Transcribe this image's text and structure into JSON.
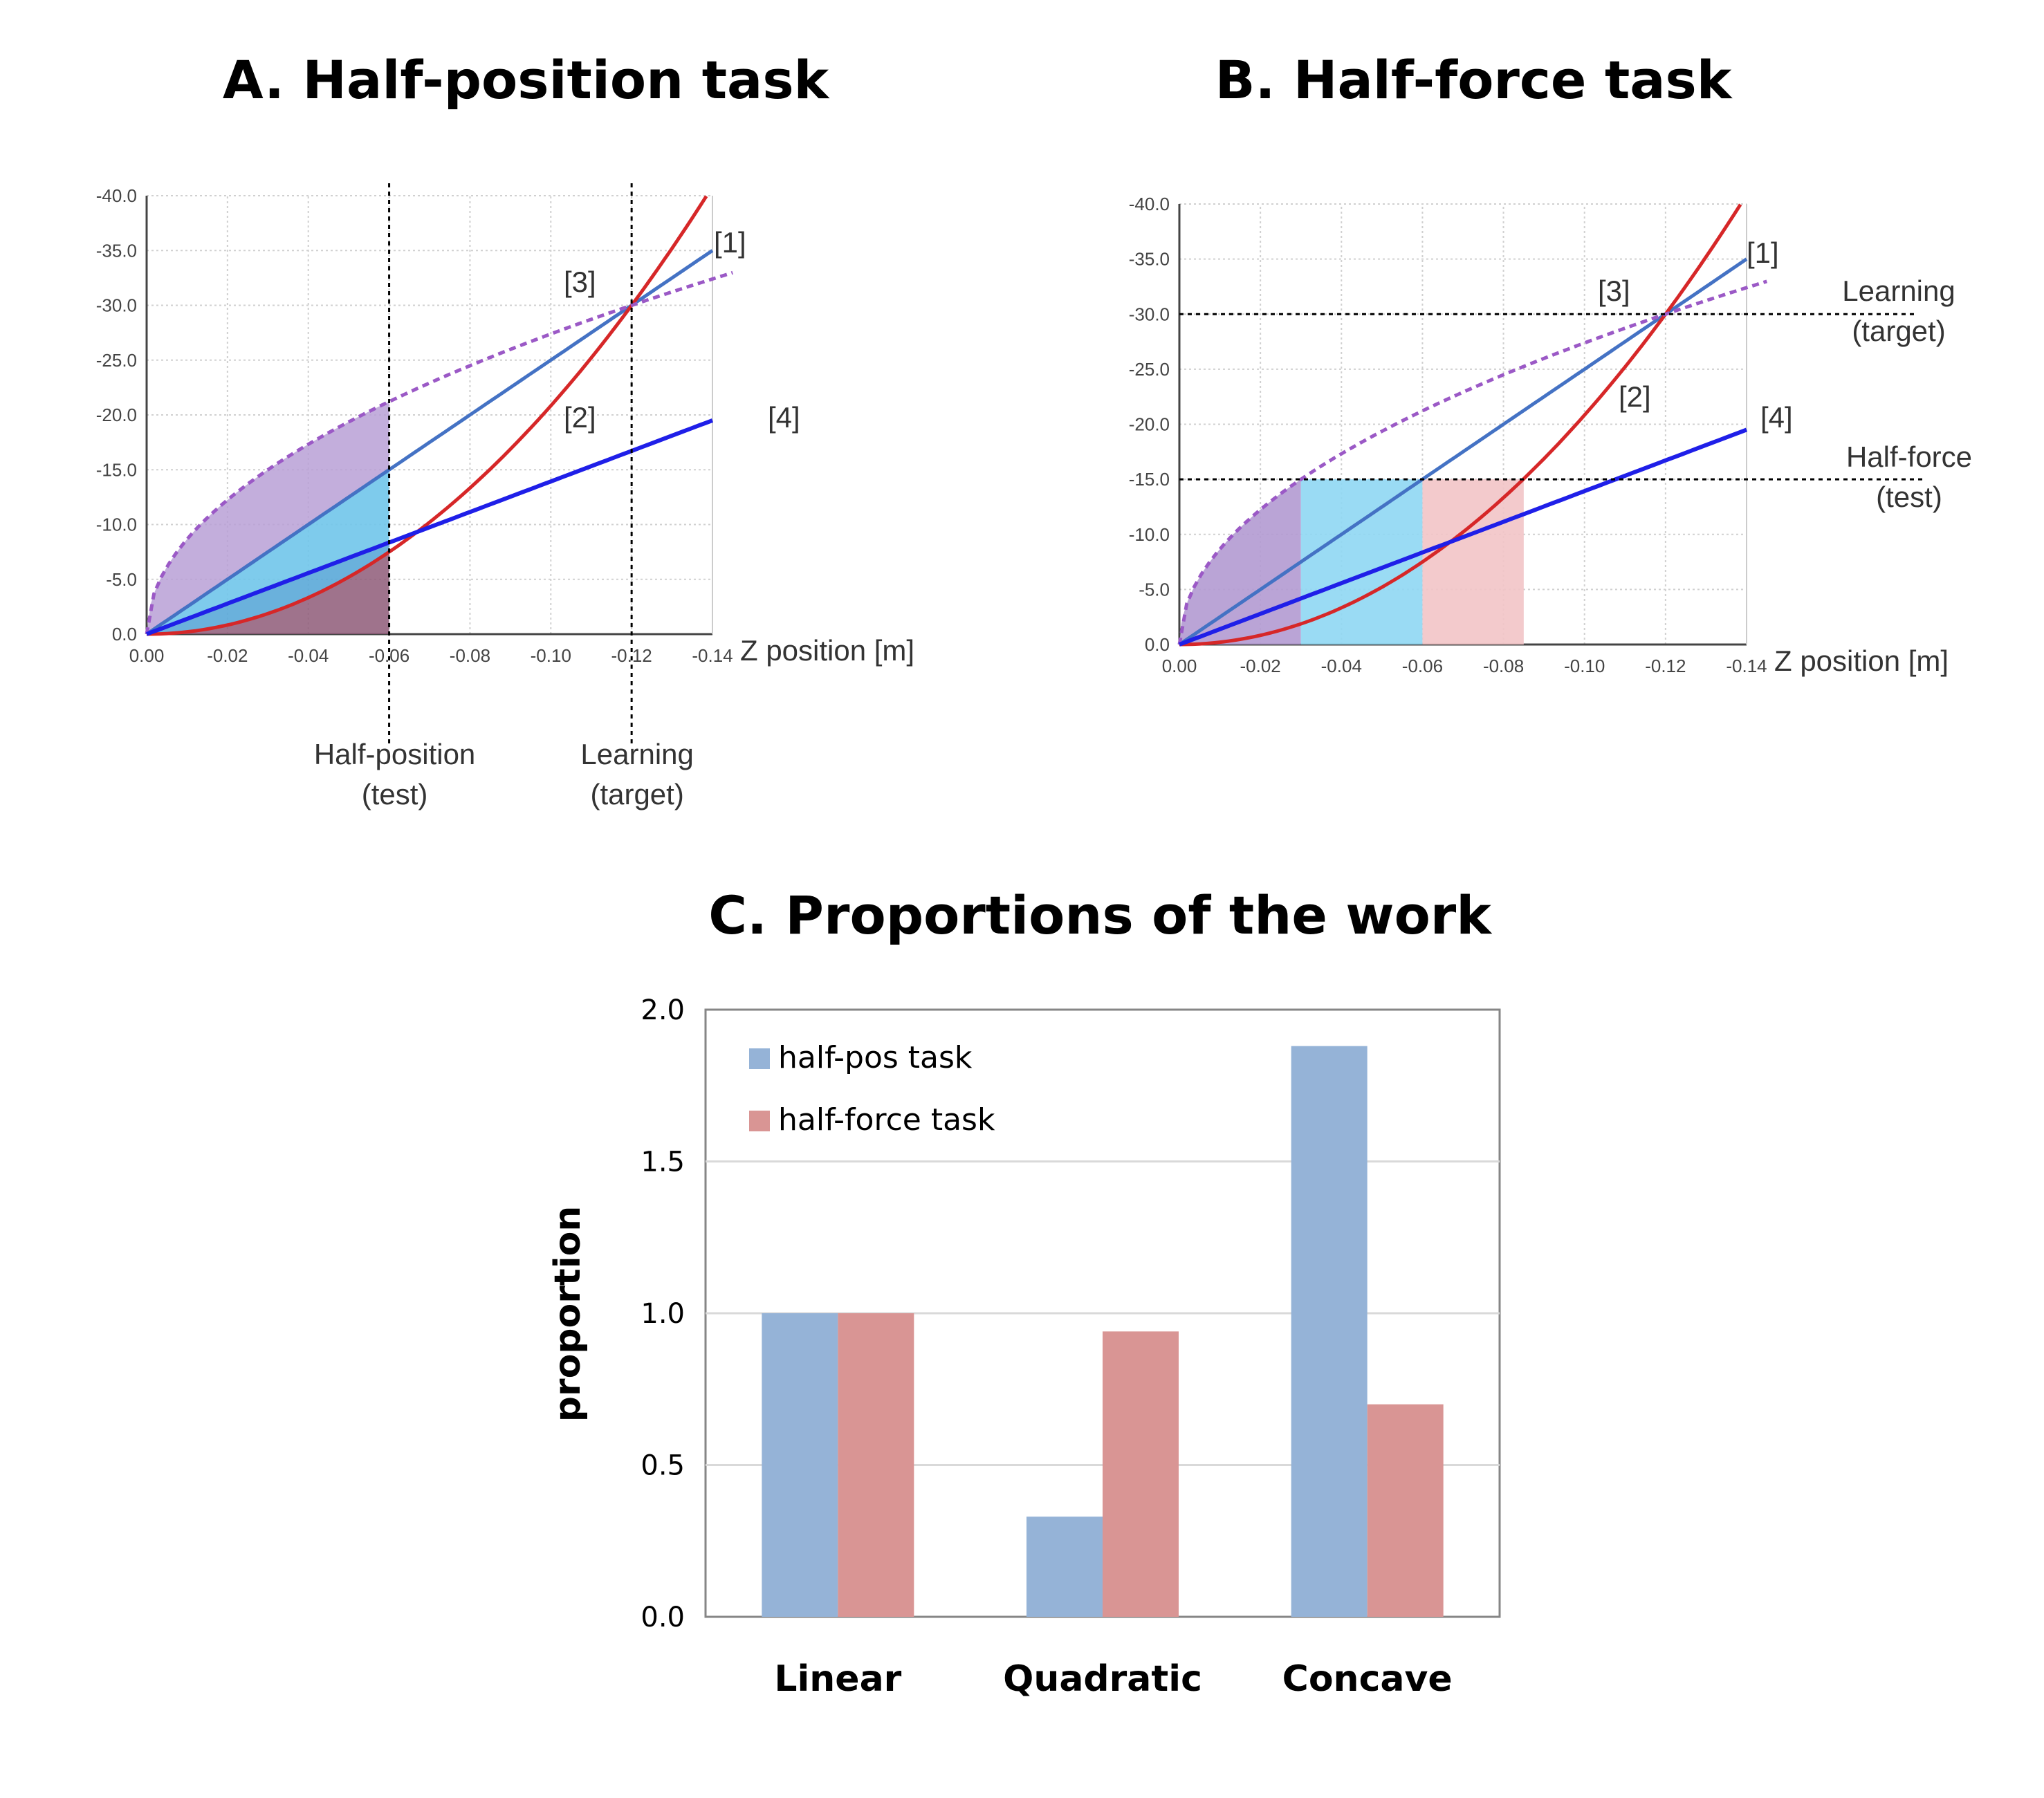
{
  "panel_a": {
    "title": "A.  Half-position task",
    "x_axis_label": "Z position [m]",
    "marker_test": [
      "Half-position",
      "(test)"
    ],
    "marker_target": [
      "Learning",
      "(target)"
    ]
  },
  "panel_b": {
    "title": "B.  Half-force task",
    "x_axis_label": "Z position [m]",
    "marker_target": [
      "Learning",
      "(target)"
    ],
    "marker_test": [
      "Half-force",
      "(test)"
    ]
  },
  "panel_c": {
    "title": "C.    Proportions of the work"
  },
  "chart_data": [
    {
      "type": "line",
      "title": "A.  Half-position task",
      "xlabel": "Z position [m]",
      "ylabel": "",
      "xlim": [
        0.0,
        -0.14
      ],
      "ylim": [
        0.0,
        -40.0
      ],
      "xticks": [
        "0.00",
        "-0.02",
        "-0.04",
        "-0.06",
        "-0.08",
        "-0.10",
        "-0.12",
        "-0.14"
      ],
      "yticks": [
        "0.0",
        "-5.0",
        "-10.0",
        "-15.0",
        "-20.0",
        "-25.0",
        "-30.0",
        "-35.0",
        "-40.0"
      ],
      "grid": true,
      "series": [
        {
          "name": "[1]",
          "x": [
            0.0,
            -0.14
          ],
          "y": [
            0.0,
            -35.0
          ],
          "style": "linear",
          "color": "#4472c4"
        },
        {
          "name": "[2]",
          "x": [
            0.0,
            -0.02,
            -0.04,
            -0.06,
            -0.08,
            -0.1,
            -0.12,
            -0.14
          ],
          "y": [
            0.0,
            -0.8,
            -3.3,
            -7.5,
            -13.3,
            -20.8,
            -30.0,
            -40.8
          ],
          "style": "quadratic",
          "color": "#d62728"
        },
        {
          "name": "[3]",
          "x": [
            0.0,
            -0.02,
            -0.04,
            -0.06,
            -0.08,
            -0.1,
            -0.12,
            -0.14
          ],
          "y": [
            0.0,
            -11.3,
            -17.3,
            -21.2,
            -24.5,
            -27.4,
            -30.0,
            -32.4
          ],
          "style": "concave-dashed",
          "color": "#9b59c6"
        },
        {
          "name": "[4]",
          "x": [
            0.0,
            -0.14
          ],
          "y": [
            0.0,
            -19.5
          ],
          "style": "linear",
          "color": "#1f1fe8"
        }
      ],
      "markers": [
        {
          "x": -0.06,
          "label": "Half-position (test)"
        },
        {
          "x": -0.12,
          "label": "Learning (target)"
        }
      ],
      "shaded_upto_x": -0.06
    },
    {
      "type": "line",
      "title": "B.  Half-force task",
      "xlabel": "Z position [m]",
      "ylabel": "",
      "xlim": [
        0.0,
        -0.14
      ],
      "ylim": [
        0.0,
        -40.0
      ],
      "xticks": [
        "0.00",
        "-0.02",
        "-0.04",
        "-0.06",
        "-0.08",
        "-0.10",
        "-0.12",
        "-0.14"
      ],
      "yticks": [
        "0.0",
        "-5.0",
        "-10.0",
        "-15.0",
        "-20.0",
        "-25.0",
        "-30.0",
        "-35.0",
        "-40.0"
      ],
      "grid": true,
      "series": [
        {
          "name": "[1]",
          "x": [
            0.0,
            -0.14
          ],
          "y": [
            0.0,
            -35.0
          ],
          "style": "linear",
          "color": "#4472c4"
        },
        {
          "name": "[2]",
          "x": [
            0.0,
            -0.02,
            -0.04,
            -0.06,
            -0.08,
            -0.1,
            -0.12,
            -0.14
          ],
          "y": [
            0.0,
            -0.8,
            -3.3,
            -7.5,
            -13.3,
            -20.8,
            -30.0,
            -40.8
          ],
          "style": "quadratic",
          "color": "#d62728"
        },
        {
          "name": "[3]",
          "x": [
            0.0,
            -0.02,
            -0.04,
            -0.06,
            -0.08,
            -0.1,
            -0.12,
            -0.14
          ],
          "y": [
            0.0,
            -11.3,
            -17.3,
            -21.2,
            -24.5,
            -27.4,
            -30.0,
            -32.4
          ],
          "style": "concave-dashed",
          "color": "#9b59c6"
        },
        {
          "name": "[4]",
          "x": [
            0.0,
            -0.14
          ],
          "y": [
            0.0,
            -19.5
          ],
          "style": "linear",
          "color": "#1f1fe8"
        }
      ],
      "markers": [
        {
          "y": -30.0,
          "label": "Learning (target)"
        },
        {
          "y": -15.0,
          "label": "Half-force (test)"
        }
      ],
      "shaded_regions": [
        {
          "from_x": 0.0,
          "to_x": -0.03,
          "color": "purple"
        },
        {
          "from_x": -0.03,
          "to_x": -0.06,
          "color": "lightblue"
        },
        {
          "from_x": -0.06,
          "to_x": -0.085,
          "color": "pink"
        }
      ]
    },
    {
      "type": "bar",
      "title": "C.    Proportions of the work",
      "xlabel": "",
      "ylabel": "proportion",
      "categories": [
        "Linear",
        "Quadratic",
        "Concave"
      ],
      "ylim": [
        0.0,
        2.0
      ],
      "yticks": [
        "0.0",
        "0.5",
        "1.0",
        "1.5",
        "2.0"
      ],
      "legend": "top-left",
      "series": [
        {
          "name": "half-pos task",
          "values": [
            1.0,
            0.33,
            1.88
          ],
          "color": "#95b3d7"
        },
        {
          "name": "half-force task",
          "values": [
            1.0,
            0.94,
            0.7
          ],
          "color": "#d99594"
        }
      ]
    }
  ]
}
